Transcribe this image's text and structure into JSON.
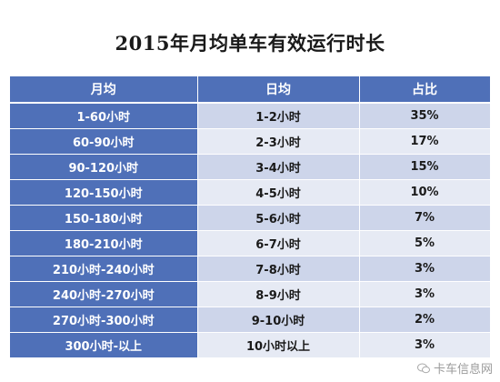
{
  "chart_data": {
    "type": "table",
    "title": "2015年月均单车有效运行时长",
    "columns": [
      "月均",
      "日均",
      "占比"
    ],
    "rows": [
      [
        "1-60小时",
        "1-2小时",
        "35%"
      ],
      [
        "60-90小时",
        "2-3小时",
        "17%"
      ],
      [
        "90-120小时",
        "3-4小时",
        "15%"
      ],
      [
        "120-150小时",
        "4-5小时",
        "10%"
      ],
      [
        "150-180小时",
        "5-6小时",
        "7%"
      ],
      [
        "180-210小时",
        "6-7小时",
        "5%"
      ],
      [
        "210小时-240小时",
        "7-8小时",
        "3%"
      ],
      [
        "240小时-270小时",
        "8-9小时",
        "3%"
      ],
      [
        "270小时-300小时",
        "9-10小时",
        "2%"
      ],
      [
        "300小时-以上",
        "10小时以上",
        "3%"
      ]
    ],
    "values": [
      35,
      17,
      15,
      10,
      7,
      5,
      3,
      3,
      2,
      3
    ]
  },
  "watermark": "卡车信息网",
  "colors": {
    "header_bg": "#4f70b8",
    "row_odd": "#cdd5ea",
    "row_even": "#e6eaf4"
  }
}
